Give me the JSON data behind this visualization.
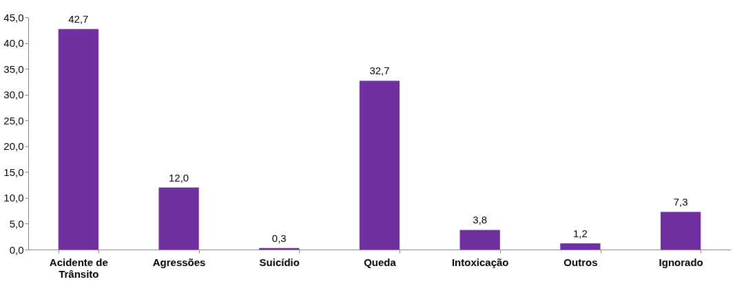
{
  "chart_data": {
    "type": "bar",
    "categories": [
      "Acidente de Trânsito",
      "Agressões",
      "Suicídio",
      "Queda",
      "Intoxicação",
      "Outros",
      "Ignorado"
    ],
    "values": [
      42.7,
      12.0,
      0.3,
      32.7,
      3.8,
      1.2,
      7.3
    ],
    "value_labels": [
      "42,7",
      "12,0",
      "0,3",
      "32,7",
      "3,8",
      "1,2",
      "7,3"
    ],
    "color": "#7030a0",
    "ylim": [
      0,
      45
    ],
    "yticks": [
      {
        "value": 0,
        "label": "0,0"
      },
      {
        "value": 5,
        "label": "5,0"
      },
      {
        "value": 10,
        "label": "10,0"
      },
      {
        "value": 15,
        "label": "15,0"
      },
      {
        "value": 20,
        "label": "20,0"
      },
      {
        "value": 25,
        "label": "25,0"
      },
      {
        "value": 30,
        "label": "30,0"
      },
      {
        "value": 35,
        "label": "35,0"
      },
      {
        "value": 40,
        "label": "40,0"
      },
      {
        "value": 45,
        "label": "45,0"
      }
    ],
    "grid": false
  }
}
